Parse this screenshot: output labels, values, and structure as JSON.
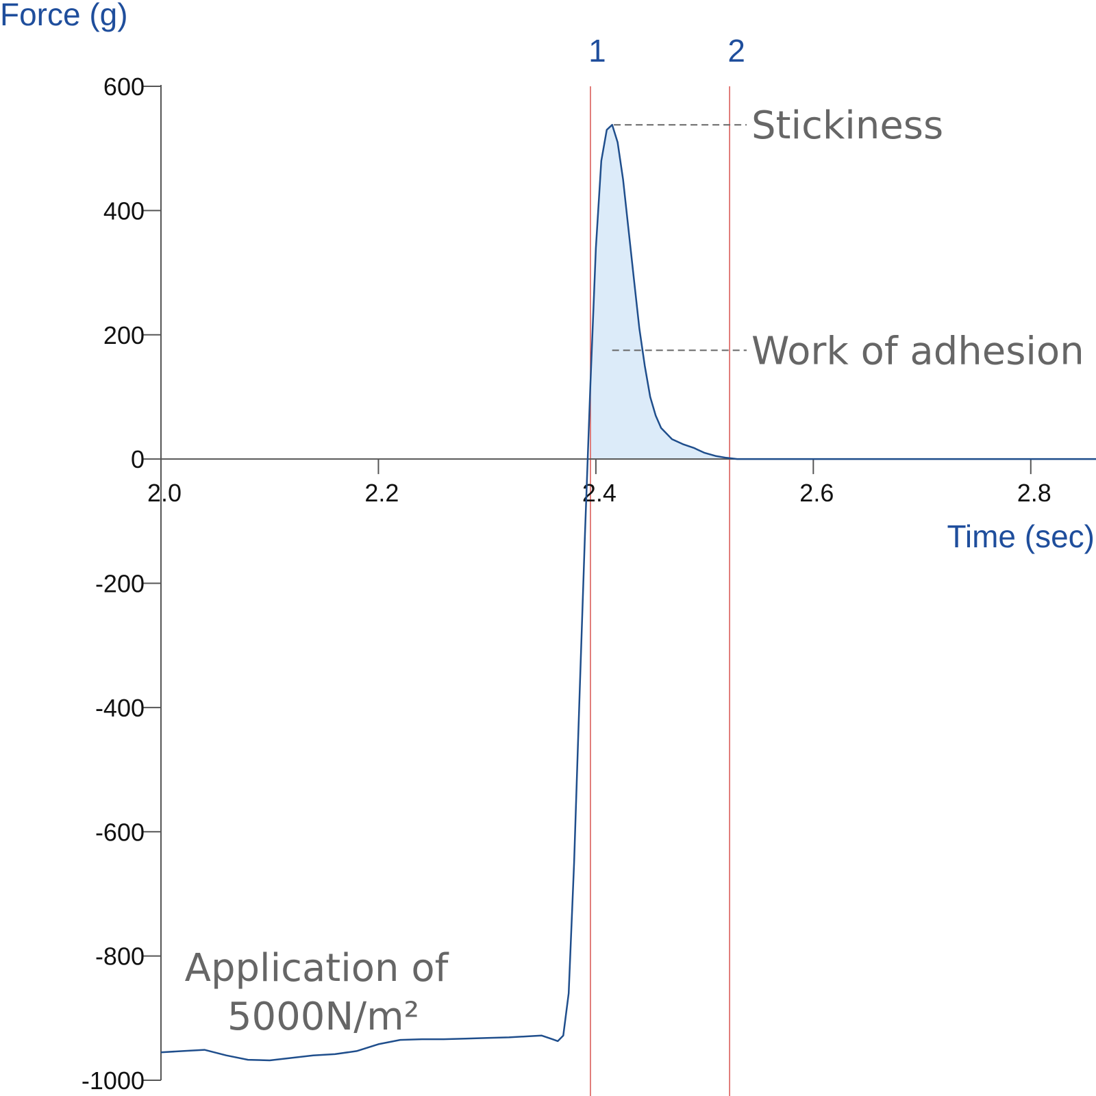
{
  "colors": {
    "line": "#1f4e8c",
    "fill": "#dcebf9",
    "axis": "#555555",
    "marker": "#d9534f",
    "axis_title": "#1f4e9c",
    "annotation": "#666666"
  },
  "chart_data": {
    "type": "area",
    "title": "",
    "xlabel": "Time (sec)",
    "ylabel": "Force (g)",
    "xlim": [
      2.0,
      2.86
    ],
    "ylim": [
      -1000,
      600
    ],
    "xticks": [
      "2.0",
      "2.2",
      "2.4",
      "2.6",
      "2.8"
    ],
    "yticks": [
      "600",
      "400",
      "200",
      "0",
      "-200",
      "-400",
      "-600",
      "-800",
      "-1000"
    ],
    "grid": false,
    "series": [
      {
        "x": [
          2.0,
          2.02,
          2.04,
          2.06,
          2.08,
          2.1,
          2.12,
          2.14,
          2.16,
          2.18,
          2.2,
          2.22,
          2.24,
          2.26,
          2.28,
          2.3,
          2.32,
          2.34,
          2.35,
          2.36,
          2.365,
          2.37,
          2.375,
          2.38,
          2.385,
          2.39,
          2.395,
          2.4,
          2.405,
          2.41,
          2.415,
          2.42,
          2.425,
          2.43,
          2.435,
          2.44,
          2.445,
          2.45,
          2.455,
          2.46,
          2.47,
          2.48,
          2.49,
          2.5,
          2.51,
          2.52,
          2.53,
          2.55,
          2.6,
          2.65,
          2.7,
          2.75,
          2.8,
          2.82,
          2.86
        ],
        "y": [
          -955,
          -953,
          -951,
          -960,
          -967,
          -968,
          -964,
          -960,
          -958,
          -953,
          -942,
          -935,
          -934,
          -934,
          -933,
          -932,
          -931,
          -929,
          -928,
          -934,
          -937,
          -928,
          -860,
          -650,
          -380,
          -120,
          120,
          340,
          480,
          530,
          538,
          510,
          450,
          370,
          290,
          210,
          150,
          100,
          70,
          50,
          32,
          24,
          18,
          10,
          5,
          2,
          0,
          0,
          0,
          0,
          0,
          0,
          0,
          0,
          0
        ]
      }
    ],
    "shaded_region": {
      "from_marker": "1",
      "to_marker": "2"
    },
    "markers": [
      {
        "label": "1",
        "x": 2.395
      },
      {
        "label": "2",
        "x": 2.523
      }
    ],
    "annotations": [
      {
        "text": "Stickiness",
        "x": 2.414,
        "y": 538
      },
      {
        "text": "Work of adhesion",
        "x": 2.415,
        "y": 175
      },
      {
        "text_line1": "Application of",
        "text_line2": "5000N/m²",
        "x": 2.06,
        "y": -800
      }
    ]
  }
}
